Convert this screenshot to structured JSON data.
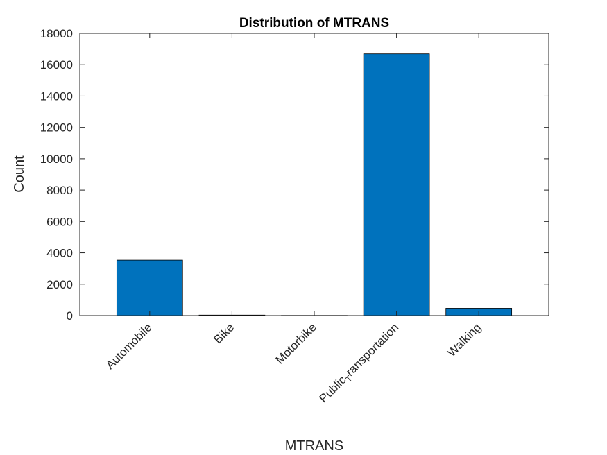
{
  "chart_data": {
    "type": "bar",
    "title": "Distribution of MTRANS",
    "xlabel": "MTRANS",
    "ylabel": "Count",
    "categories": [
      "Automobile",
      "Bike",
      "Motorbike",
      "Public_Transportation",
      "Walking"
    ],
    "tick_labels": [
      "Automobile",
      "Bike",
      "Motorbike",
      "Public",
      "ransportation",
      "T",
      "Walking"
    ],
    "values": [
      3534,
      32,
      11,
      16687,
      466
    ],
    "ylim": [
      0,
      18000
    ],
    "yticks": [
      0,
      2000,
      4000,
      6000,
      8000,
      10000,
      12000,
      14000,
      16000,
      18000
    ],
    "grid": false,
    "bar_color": "#0072BD"
  }
}
